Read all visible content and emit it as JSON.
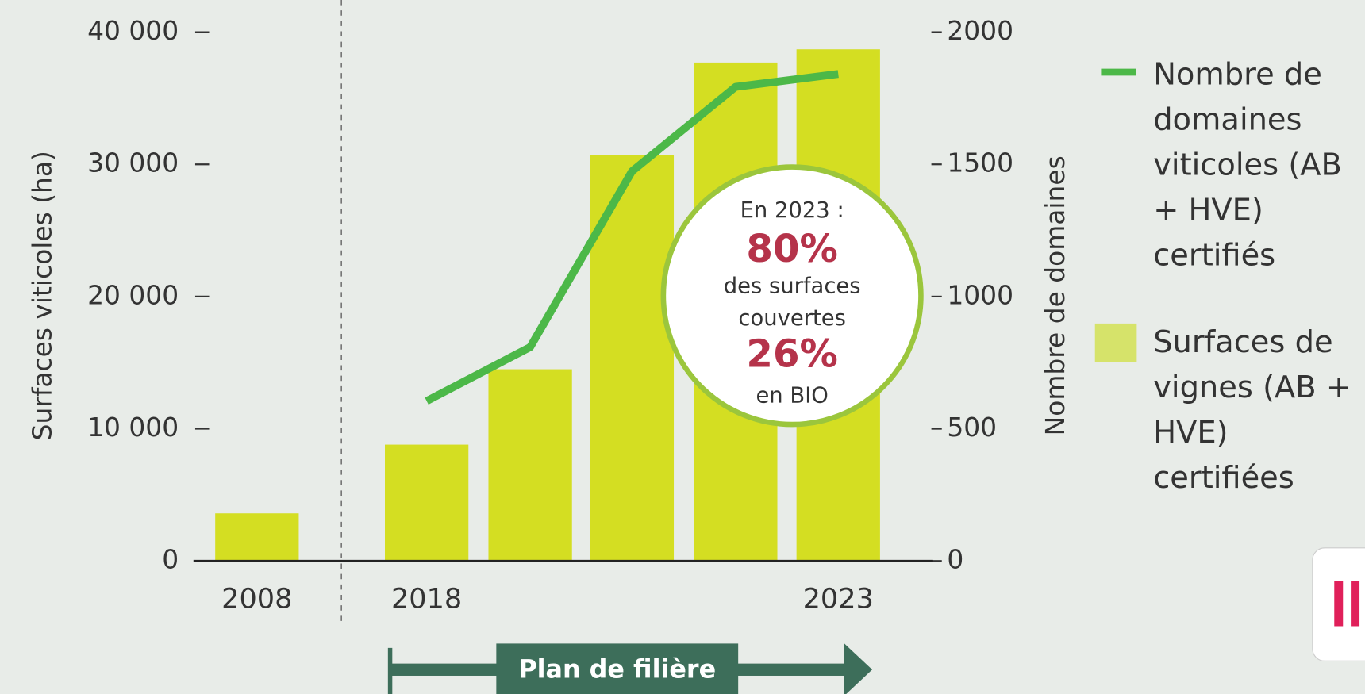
{
  "chart_data": {
    "type": "bar",
    "categories": [
      "2008",
      "2018",
      null,
      null,
      null,
      "2023"
    ],
    "series": [
      {
        "name": "Nombre de domaines viticoles (AB + HVE) certifiés",
        "type": "line",
        "axis": "y2",
        "color": "#4cb848",
        "values": [
          null,
          605,
          809,
          1474,
          1793,
          1842
        ]
      },
      {
        "name": "Surfaces de vignes (AB + HVE) certifiées",
        "type": "bar",
        "color": "#d4de22",
        "values": [
          3600,
          8800,
          14500,
          30700,
          37700,
          38700
        ]
      }
    ],
    "y_label": "Surfaces viticoles (ha)",
    "y2_label": "Nombre de domaines",
    "ylim": [
      0,
      40000
    ],
    "yticks": [
      0,
      {
        "value": 10000,
        "label": "10 000"
      },
      {
        "value": 20000,
        "label": "20 000"
      },
      {
        "value": 30000,
        "label": "30 000"
      },
      {
        "value": 40000,
        "label": "40 000"
      }
    ],
    "y2lim": [
      0,
      2000
    ],
    "y2ticks": [
      0,
      500,
      1000,
      1500,
      2000
    ],
    "legend": "right",
    "annotation": {
      "lines": [
        "En 2023 :",
        "80%",
        "des surfaces",
        "couvertes",
        "26%",
        "en BIO"
      ]
    },
    "period_label": "Plan de filière"
  }
}
